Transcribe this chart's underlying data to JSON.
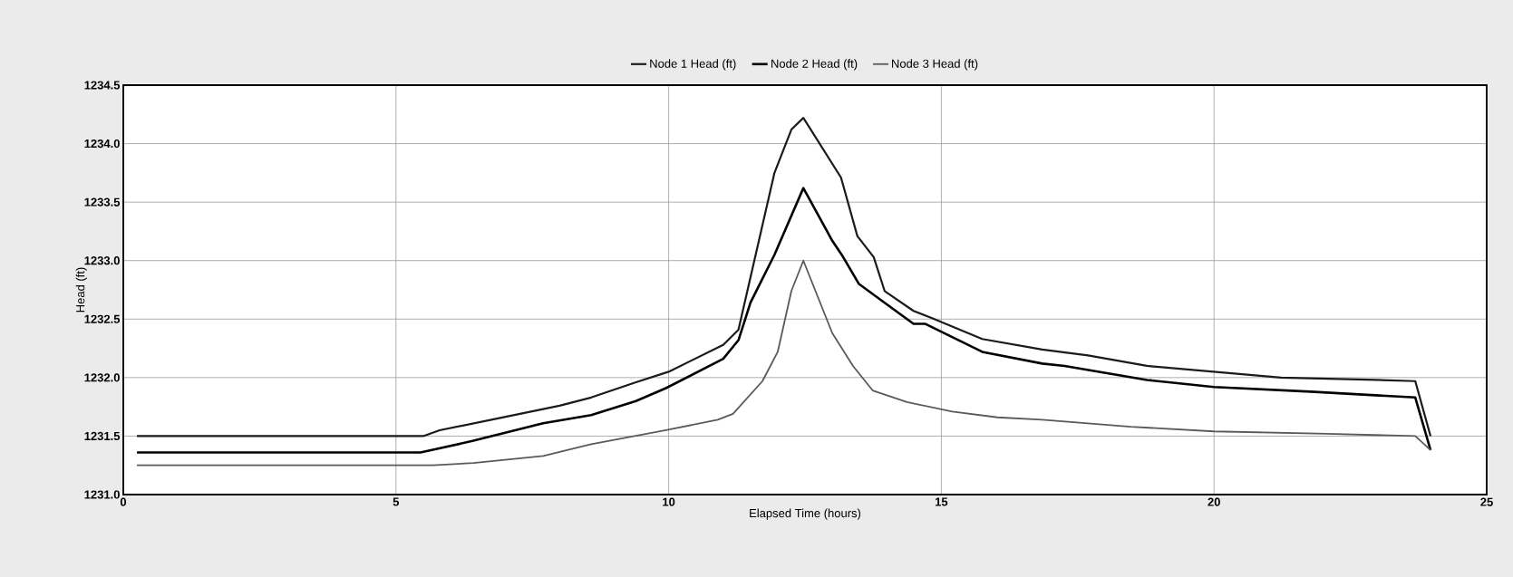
{
  "chart_data": {
    "type": "line",
    "xlabel": "Elapsed Time (hours)",
    "ylabel": "Head (ft)",
    "xlim": [
      0,
      25
    ],
    "xticks": [
      0,
      5,
      10,
      15,
      20,
      25
    ],
    "ylim": [
      1231.0,
      1234.5
    ],
    "yticks": [
      {
        "value": 1231.0,
        "label": "1231.0"
      },
      1231.5,
      {
        "value": 1232.0,
        "label": "1232.0"
      },
      1232.5,
      {
        "value": 1233.0,
        "label": "1233.0"
      },
      1233.5,
      {
        "value": 1234.0,
        "label": "1234.0"
      },
      1234.5
    ],
    "grid": true,
    "legend": "top",
    "line_style": "solid",
    "series": [
      {
        "name": "Node 1 Head (ft)",
        "color": "#1a1a1a",
        "x": [
          0.25,
          5.5,
          5.8,
          6.75,
          8.0,
          8.58,
          9.4,
          10.0,
          11.0,
          11.28,
          11.94,
          12.25,
          12.47,
          13.16,
          13.46,
          13.76,
          13.96,
          14.49,
          14.82,
          15.75,
          16.85,
          17.69,
          18.77,
          20.0,
          21.23,
          22.97,
          23.69,
          23.97
        ],
        "values": [
          1231.5,
          1231.5,
          1231.55,
          1231.64,
          1231.76,
          1231.83,
          1231.96,
          1232.05,
          1232.28,
          1232.41,
          1233.75,
          1234.12,
          1234.22,
          1233.71,
          1233.21,
          1233.03,
          1232.74,
          1232.57,
          1232.51,
          1232.33,
          1232.24,
          1232.19,
          1232.1,
          1232.05,
          1232.0,
          1231.98,
          1231.97,
          1231.5
        ]
      },
      {
        "name": "Node 2 Head (ft)",
        "color": "#000000",
        "x": [
          0.25,
          5.45,
          6.42,
          7.7,
          8.58,
          9.4,
          9.95,
          11.0,
          11.28,
          11.5,
          11.94,
          12.47,
          13.0,
          13.2,
          13.49,
          13.96,
          14.49,
          14.7,
          15.75,
          16.85,
          17.26,
          18.77,
          20.0,
          21.77,
          23.69,
          23.97
        ],
        "values": [
          1231.36,
          1231.36,
          1231.46,
          1231.61,
          1231.68,
          1231.8,
          1231.91,
          1232.16,
          1232.32,
          1232.64,
          1233.05,
          1233.62,
          1233.17,
          1233.03,
          1232.8,
          1232.64,
          1232.46,
          1232.46,
          1232.22,
          1232.12,
          1232.1,
          1231.98,
          1231.92,
          1231.88,
          1231.83,
          1231.38
        ]
      },
      {
        "name": "Node 3 Head (ft)",
        "color": "#5a5a5a",
        "x": [
          0.25,
          5.68,
          6.42,
          7.7,
          8.58,
          9.95,
          10.9,
          11.18,
          11.72,
          12.0,
          12.25,
          12.47,
          13.0,
          13.38,
          13.74,
          14.37,
          15.2,
          16.03,
          16.85,
          18.47,
          20.0,
          22.07,
          23.69,
          23.97
        ],
        "values": [
          1231.25,
          1231.25,
          1231.27,
          1231.33,
          1231.43,
          1231.55,
          1231.64,
          1231.69,
          1231.97,
          1232.22,
          1232.74,
          1233.0,
          1232.38,
          1232.1,
          1231.89,
          1231.79,
          1231.71,
          1231.66,
          1231.64,
          1231.58,
          1231.54,
          1231.52,
          1231.5,
          1231.38
        ]
      }
    ]
  }
}
